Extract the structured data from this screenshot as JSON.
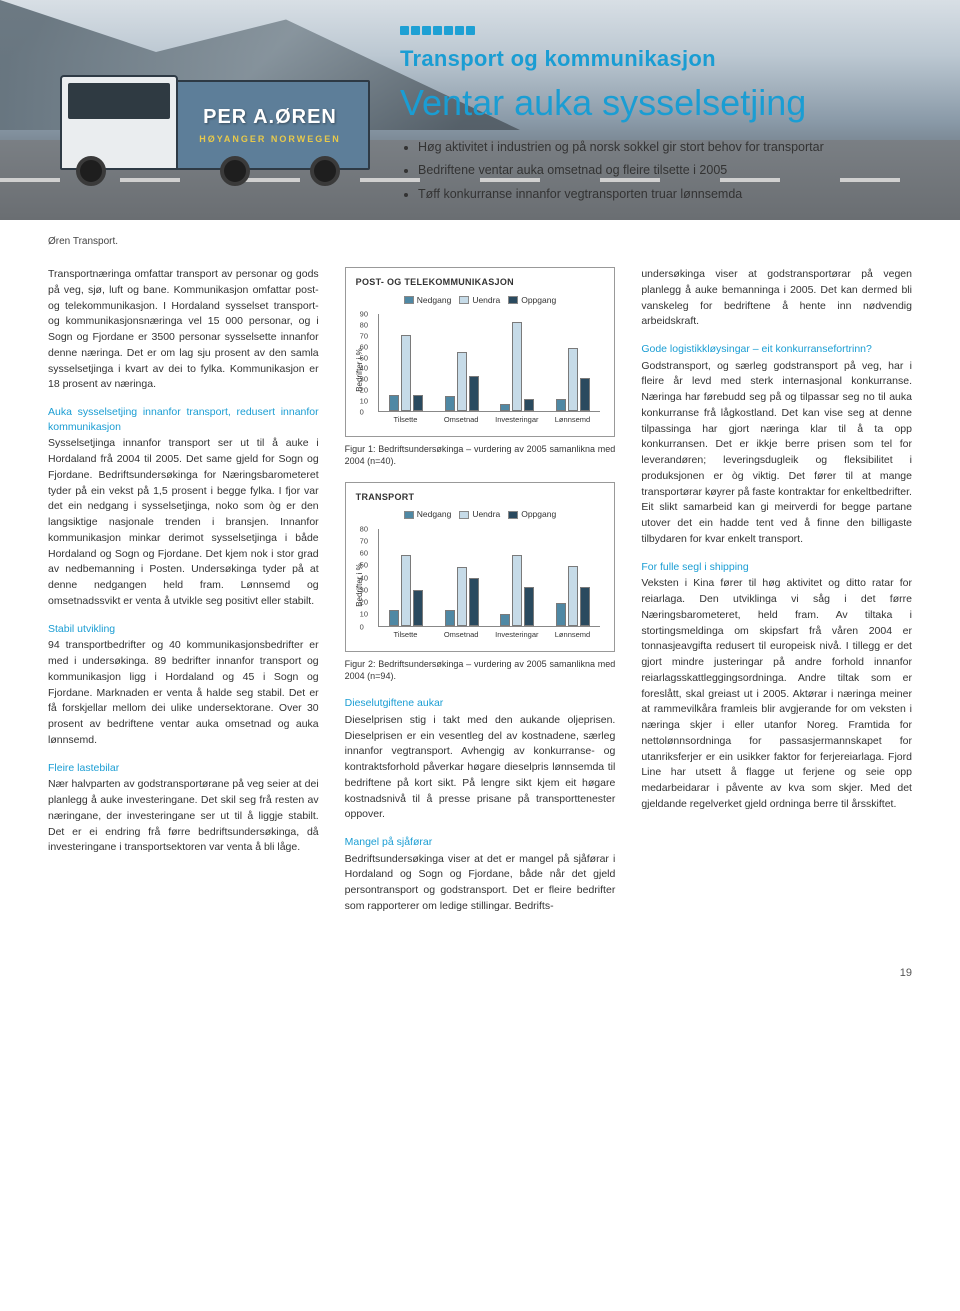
{
  "header": {
    "brand": "Transport og kommunikasjon",
    "title": "Ventar auka sysselsetjing",
    "bullets": [
      "Høg aktivitet i industrien og på norsk sokkel gir stort behov for transportar",
      "Bedriftene ventar auka omsetnad og fleire tilsette i 2005",
      "Tøff konkurranse innanfor vegtransporten truar lønnsemda"
    ],
    "truck_brand": "PER A.ØREN",
    "truck_sub": "HØYANGER NORWEGEN"
  },
  "photo_caption": "Øren Transport.",
  "col1": {
    "p1": "Transportnæringa omfattar transport av personar og gods på veg, sjø, luft og bane. Kommunikasjon omfattar post- og telekommunikasjon. I Hordaland sysselset transport- og kommunikasjonsnæringa vel 15 000 personar, og i Sogn og Fjordane er 3500 personar sysselsette innanfor denne næringa. Det er om lag sju prosent av den samla sysselsetjinga i kvart av dei to fylka. Kommunikasjon er 18 prosent av næringa.",
    "h1": "Auka sysselsetjing innanfor transport, redusert innanfor kommunikasjon",
    "p2": "Sysselsetjinga innanfor transport ser ut til å auke i Hordaland frå 2004 til 2005. Det same gjeld for Sogn og Fjordane. Bedriftsundersøkinga for Næringsbarometeret tyder på ein vekst på 1,5 prosent i begge fylka. I fjor var det ein nedgang i sysselsetjinga, noko som òg er den langsiktige nasjonale trenden i bransjen. Innanfor kommunikasjon minkar derimot sysselsetjinga i både Hordaland og Sogn og Fjordane. Det kjem nok i stor grad av nedbemanning i Posten. Undersøkinga tyder på at denne nedgangen held fram. Lønnsemd og omsetnadssvikt er venta å utvikle seg positivt eller stabilt.",
    "h2": "Stabil utvikling",
    "p3": "94 transportbedrifter og 40 kommunikasjonsbedrifter er med i undersøkinga. 89 bedrifter innanfor transport og kommunikasjon ligg i Hordaland og 45 i Sogn og Fjordane. Marknaden er venta å halde seg stabil. Det er få forskjellar mellom dei ulike undersektorane. Over 30 prosent av bedriftene ventar auka omsetnad og auka lønnsemd.",
    "h3": "Fleire lastebilar",
    "p4": "Nær halvparten av godstransportørane på veg seier at dei planlegg å auke investeringane. Det skil seg frå resten av næringane, der investeringane ser ut til å liggje stabilt. Det er ei endring frå førre bedriftsundersøkinga, då investeringane i transportsektoren var venta å bli låge."
  },
  "chart1": {
    "title": "POST- OG TELEKOMMUNIKASJON",
    "ylabel": "Bedrifter i %",
    "ymax": 90,
    "yticks": [
      0,
      10,
      20,
      30,
      40,
      50,
      60,
      70,
      80,
      90
    ],
    "legend": [
      {
        "label": "Nedgang",
        "color": "#4f88a4"
      },
      {
        "label": "Uendra",
        "color": "#c6dbe8"
      },
      {
        "label": "Oppgang",
        "color": "#2a4a5f"
      }
    ],
    "categories": [
      "Tilsette",
      "Omsetnad",
      "Investeringar",
      "Lønnsemd"
    ],
    "series": {
      "Tilsette": {
        "nedgang": 15,
        "uendra": 70,
        "oppgang": 15
      },
      "Omsetnad": {
        "nedgang": 14,
        "uendra": 54,
        "oppgang": 32
      },
      "Investeringar": {
        "nedgang": 7,
        "uendra": 82,
        "oppgang": 11
      },
      "Lønnsemd": {
        "nedgang": 11,
        "uendra": 58,
        "oppgang": 31
      }
    },
    "caption": "Figur 1: Bedriftsundersøkinga – vurdering av 2005 samanlikna med 2004 (n=40)."
  },
  "chart2": {
    "title": "TRANSPORT",
    "ylabel": "Bedrifter i %",
    "ymax": 80,
    "yticks": [
      0,
      10,
      20,
      30,
      40,
      50,
      60,
      70,
      80
    ],
    "legend": [
      {
        "label": "Nedgang",
        "color": "#4f88a4"
      },
      {
        "label": "Uendra",
        "color": "#c6dbe8"
      },
      {
        "label": "Oppgang",
        "color": "#2a4a5f"
      }
    ],
    "categories": [
      "Tilsette",
      "Omsetnad",
      "Investeringar",
      "Lønnsemd"
    ],
    "series": {
      "Tilsette": {
        "nedgang": 13,
        "uendra": 58,
        "oppgang": 29
      },
      "Omsetnad": {
        "nedgang": 13,
        "uendra": 48,
        "oppgang": 39
      },
      "Investeringar": {
        "nedgang": 10,
        "uendra": 58,
        "oppgang": 32
      },
      "Lønnsemd": {
        "nedgang": 19,
        "uendra": 49,
        "oppgang": 32
      }
    },
    "caption": "Figur 2: Bedriftsundersøkinga – vurdering av 2005 samanlikna med 2004 (n=94)."
  },
  "col2": {
    "h1": "Dieselutgiftene aukar",
    "p1": "Dieselprisen stig i takt med den aukande oljeprisen. Dieselprisen er ein vesentleg del av kostnadene, særleg innanfor vegtransport. Avhengig av konkurranse- og kontraktsforhold påverkar høgare dieselpris lønnsemda til bedriftene på kort sikt. På lengre sikt kjem eit høgare kostnadsnivå til å presse prisane på transporttenester oppover.",
    "h2": "Mangel på sjåførar",
    "p2": "Bedriftsundersøkinga viser at det er mangel på sjåførar i Hordaland og Sogn og Fjordane, både når det gjeld persontransport og godstransport. Det er fleire bedrifter som rapporterer om ledige stillingar. Bedrifts-"
  },
  "col3": {
    "p1": "undersøkinga viser at godstransportørar på vegen planlegg å auke bemanninga i 2005. Det kan dermed bli vanskeleg for bedriftene å hente inn nødvendig arbeidskraft.",
    "h1": "Gode logistikkløysingar – eit konkurransefortrinn?",
    "p2": "Godstransport, og særleg godstransport på veg, har i fleire år levd med sterk internasjonal konkurranse. Næringa har førebudd seg på og tilpassar seg no til auka konkurranse frå lågkostland. Det kan vise seg at denne tilpassinga har gjort næringa klar til å ta opp konkurransen. Det er ikkje berre prisen som tel for leverandøren; leveringsdugleik og fleksibilitet i produksjonen er òg viktig. Det fører til at mange transportørar køyrer på faste kontraktar for enkeltbedrifter. Eit slikt samarbeid kan gi meirverdi for begge partane utover det ein hadde tent ved å finne den billigaste tilbydaren for kvar enkelt transport.",
    "h2": "For fulle segl i shipping",
    "p3": "Veksten i Kina fører til høg aktivitet og ditto ratar for reiarlaga. Den utviklinga vi såg i det førre Næringsbarometeret, held fram. Av tiltaka i stortingsmeldinga om skipsfart frå våren 2004 er tonnasjeavgifta redusert til europeisk nivå. I tillegg er det gjort mindre justeringar på andre forhold innanfor reiarlagsskattleggingsordninga. Andre tiltak som er foreslått, skal greiast ut i 2005. Aktørar i næringa meiner at rammevilkåra framleis blir avgjerande for om veksten i næringa skjer i eller utanfor Noreg. Framtida for nettolønnsordninga for passasjermannskapet for utanriksferjer er ein usikker faktor for ferjereiarlaga. Fjord Line har utsett å flagge ut ferjene og seie opp medarbeidarar i påvente av kva som skjer. Med det gjeldande regelverket gjeld ordninga berre til årsskiftet."
  },
  "page_number": "19"
}
